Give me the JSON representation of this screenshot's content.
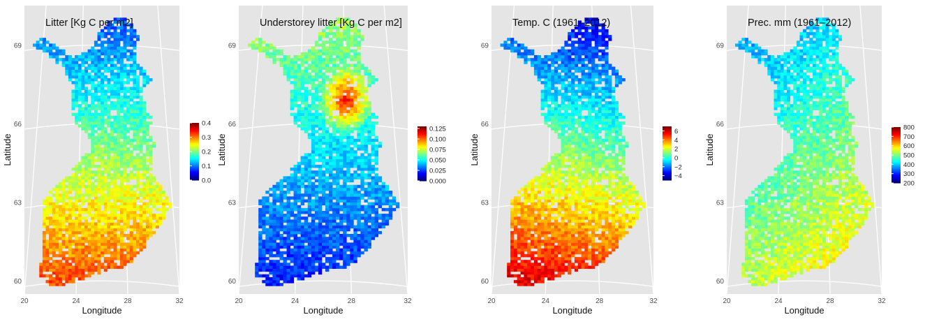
{
  "chart_data": [
    {
      "type": "heatmap",
      "title": "Litter [Kg C per m2]",
      "xlabel": "Longitude",
      "ylabel": "Latitude",
      "x_ticks": [
        "20",
        "24",
        "28",
        "32"
      ],
      "y_ticks": [
        "60",
        "63",
        "66",
        "69"
      ],
      "xlim": [
        20,
        32
      ],
      "ylim": [
        59.5,
        70.5
      ],
      "grid": true,
      "legend_position": "right",
      "colorbar": {
        "ticks": [
          "0.0",
          "0.1",
          "0.2",
          "0.3",
          "0.4"
        ],
        "range": [
          0,
          0.4
        ]
      },
      "field": {
        "south": 0.32,
        "north": 0.08,
        "east_adj": 0.0,
        "north_east_extra": 0.0
      }
    },
    {
      "type": "heatmap",
      "title": "Understorey litter [Kg C per m2]",
      "xlabel": "Longitude",
      "ylabel": "Latitude",
      "x_ticks": [
        "20",
        "24",
        "28",
        "32"
      ],
      "y_ticks": [
        "60",
        "63",
        "66",
        "69"
      ],
      "xlim": [
        20,
        32
      ],
      "ylim": [
        59.5,
        70.5
      ],
      "grid": true,
      "legend_position": "right",
      "colorbar": {
        "ticks": [
          "0.000",
          "0.025",
          "0.050",
          "0.075",
          "0.100",
          "0.125"
        ],
        "range": [
          0,
          0.13
        ]
      },
      "field": {
        "south": 0.02,
        "north": 0.07,
        "east_adj": 0.0,
        "north_east_extra": 0.06
      }
    },
    {
      "type": "heatmap",
      "title": "Temp. C (1961–2012)",
      "xlabel": "Longitude",
      "ylabel": "Latitude",
      "x_ticks": [
        "20",
        "24",
        "28",
        "32"
      ],
      "y_ticks": [
        "60",
        "63",
        "66",
        "69"
      ],
      "xlim": [
        20,
        32
      ],
      "ylim": [
        59.5,
        70.5
      ],
      "grid": true,
      "legend_position": "right",
      "colorbar": {
        "ticks": [
          "−4",
          "−2",
          "0",
          "2",
          "4",
          "6"
        ],
        "range": [
          -5,
          7
        ]
      },
      "field": {
        "south": 5.5,
        "north": -3.5,
        "east_adj": -0.5,
        "north_east_extra": 0.0
      }
    },
    {
      "type": "heatmap",
      "title": "Prec. mm (1961–2012)",
      "xlabel": "Longitude",
      "ylabel": "Latitude",
      "x_ticks": [
        "20",
        "24",
        "28",
        "32"
      ],
      "y_ticks": [
        "60",
        "63",
        "66",
        "69"
      ],
      "xlim": [
        20,
        32
      ],
      "ylim": [
        59.5,
        70.5
      ],
      "grid": true,
      "legend_position": "right",
      "colorbar": {
        "ticks": [
          "200",
          "300",
          "400",
          "500",
          "600",
          "700",
          "800"
        ],
        "range": [
          200,
          800
        ]
      },
      "field": {
        "south": 560,
        "north": 380,
        "east_adj": 40,
        "north_east_extra": 0
      }
    }
  ]
}
